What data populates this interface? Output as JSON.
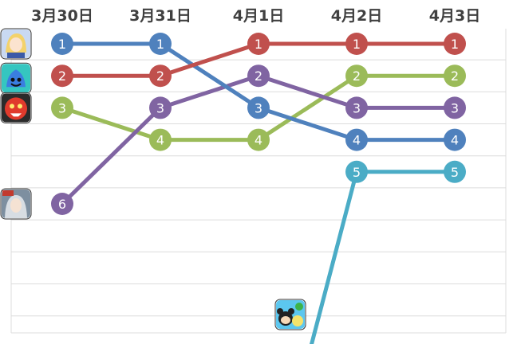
{
  "chart_data": {
    "type": "line",
    "subtype": "rank-bump",
    "categories": [
      "3月30日",
      "3月31日",
      "4月1日",
      "4月2日",
      "4月3日"
    ],
    "y_inverted": true,
    "ylim": [
      0,
      9
    ],
    "grid": true,
    "legend": "none",
    "series": [
      {
        "icon": "blonde-anime-girl-app-icon",
        "color": "#4f81bd",
        "values": [
          1,
          1,
          3,
          4,
          4
        ]
      },
      {
        "icon": "blue-slime-app-icon",
        "color": "#c0504d",
        "values": [
          2,
          2,
          1,
          1,
          1
        ]
      },
      {
        "icon": "red-monster-app-icon",
        "color": "#9bbb59",
        "values": [
          3,
          4,
          4,
          2,
          2
        ]
      },
      {
        "icon": "silver-hair-girl-app-icon",
        "color": "#8064a2",
        "values": [
          6,
          3,
          2,
          3,
          3
        ]
      },
      {
        "icon": "tsum-tsum-app-icon",
        "color": "#4bacc6",
        "values": [
          null,
          null,
          null,
          5,
          5
        ],
        "entry_from": "below"
      }
    ]
  }
}
